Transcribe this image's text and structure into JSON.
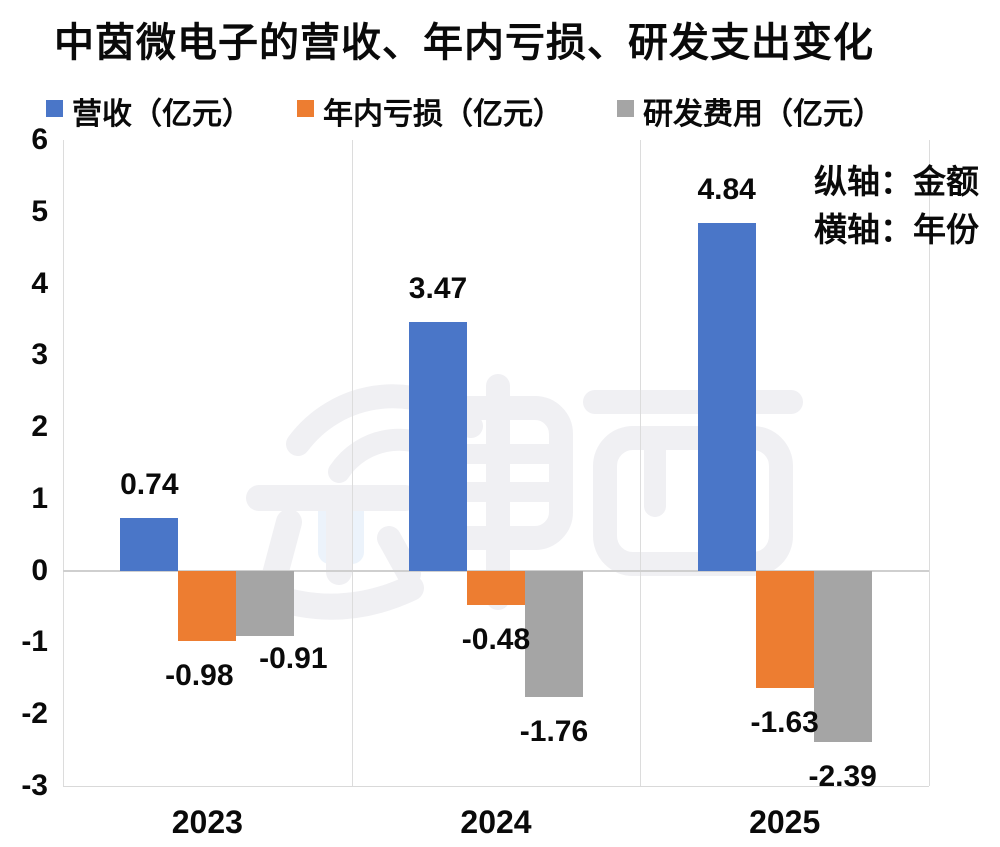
{
  "title": "中茵微电子的营收、年内亏损、研发支出变化",
  "legend": [
    {
      "label": "营收（亿元）",
      "color": "#4A76C8"
    },
    {
      "label": "年内亏损（亿元）",
      "color": "#ED7D31"
    },
    {
      "label": "研发费用（亿元）",
      "color": "#A5A5A5"
    }
  ],
  "annotation": {
    "line1": "纵轴：金额",
    "line2": "横轴：年份"
  },
  "watermark": {
    "text": "芯東西"
  },
  "colors": {
    "revenue": "#4A76C8",
    "loss": "#ED7D31",
    "rnd": "#A5A5A5",
    "gridline": "#DCDCDC",
    "zero_line": "#CFCFCF",
    "text": "#0A0A0A",
    "watermark": "#F0F0F3"
  },
  "chart_data": {
    "type": "bar",
    "title": "中茵微电子的营收、年内亏损、研发支出变化",
    "categories": [
      "2023",
      "2024",
      "2025"
    ],
    "series": [
      {
        "name": "营收（亿元）",
        "color": "#4A76C8",
        "values": [
          0.74,
          3.47,
          4.84
        ],
        "labels": [
          "0.74",
          "3.47",
          "4.84"
        ]
      },
      {
        "name": "年内亏损（亿元）",
        "color": "#ED7D31",
        "values": [
          -0.98,
          -0.48,
          -1.63
        ],
        "labels": [
          "-0.98",
          "-0.48",
          "-1.63"
        ]
      },
      {
        "name": "研发费用（亿元）",
        "color": "#A5A5A5",
        "values": [
          -0.91,
          -1.76,
          -2.39
        ],
        "labels": [
          "-0.91",
          "-1.76",
          "-2.39"
        ]
      }
    ],
    "yticks": [
      6,
      5,
      4,
      3,
      2,
      1,
      0,
      -1,
      -2,
      -3
    ],
    "ylim": [
      -3,
      6
    ],
    "xlabel": "年份",
    "ylabel": "金额",
    "grid": "vertical category separators + zero line + bottom border",
    "legend_position": "top"
  }
}
